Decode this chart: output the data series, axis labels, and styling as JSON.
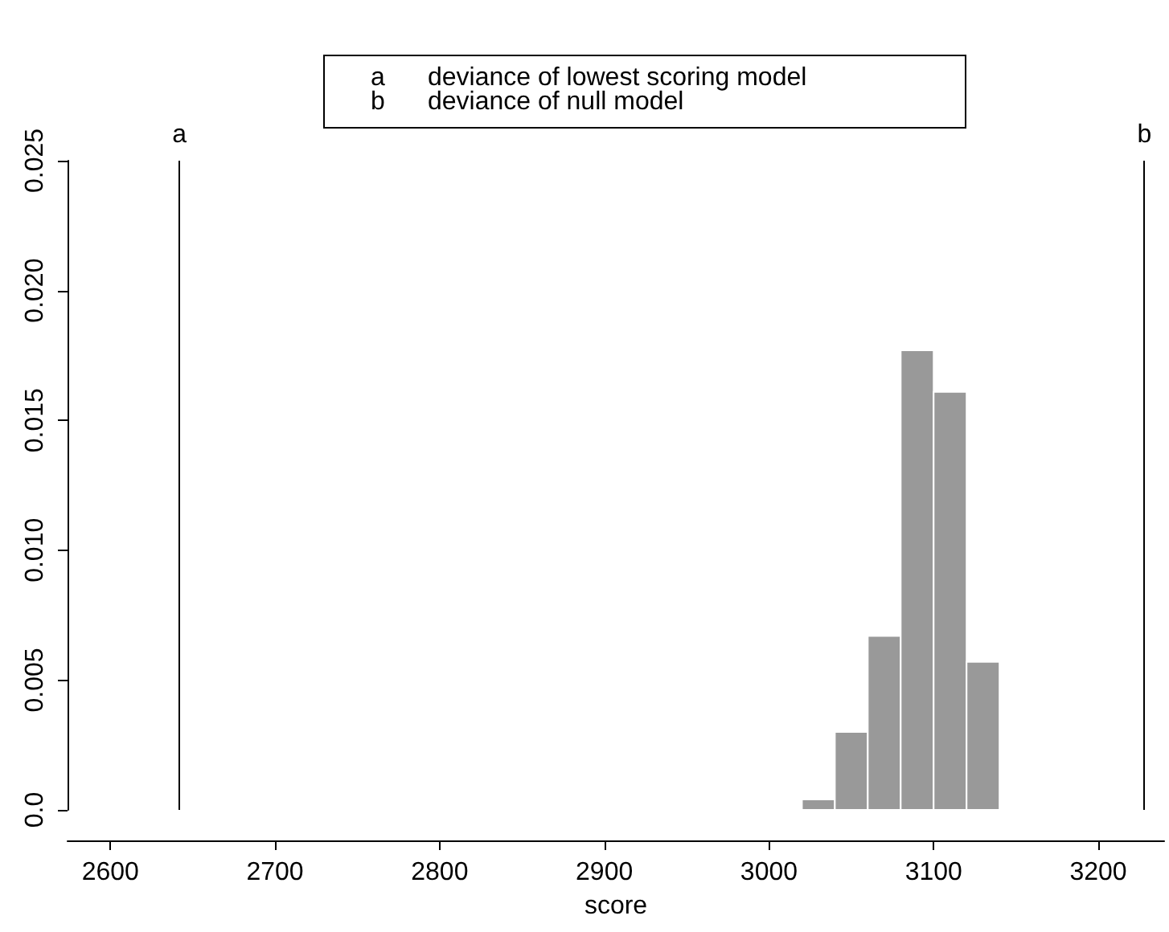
{
  "chart_data": {
    "type": "histogram",
    "xlabel": "score",
    "bins": [
      3020,
      3040,
      3060,
      3080,
      3100,
      3120,
      3140
    ],
    "values": [
      0.0004,
      0.003,
      0.0067,
      0.0177,
      0.0161,
      0.0057
    ],
    "color": "#999999",
    "xlim": [
      2574,
      3240
    ],
    "xticks": [
      2600,
      2700,
      2800,
      2900,
      3000,
      3100,
      3200
    ],
    "ylim": [
      0,
      0.025
    ],
    "yticks": [
      {
        "value": 0,
        "label": "0.0"
      },
      {
        "value": 0.005,
        "label": "0.005"
      },
      {
        "value": 0.01,
        "label": "0.010"
      },
      {
        "value": 0.015,
        "label": "0.015"
      },
      {
        "value": 0.02,
        "label": "0.020"
      },
      {
        "value": 0.025,
        "label": "0.025"
      }
    ],
    "ref_lines": [
      {
        "axis": "x",
        "value": 2642,
        "label": "a",
        "color": "#000000"
      },
      {
        "axis": "x",
        "value": 3228,
        "label": "b",
        "color": "#000000"
      }
    ],
    "annotations": [
      "a deviance of lowest scoring model",
      "b deviance of null model"
    ],
    "grid": false
  }
}
